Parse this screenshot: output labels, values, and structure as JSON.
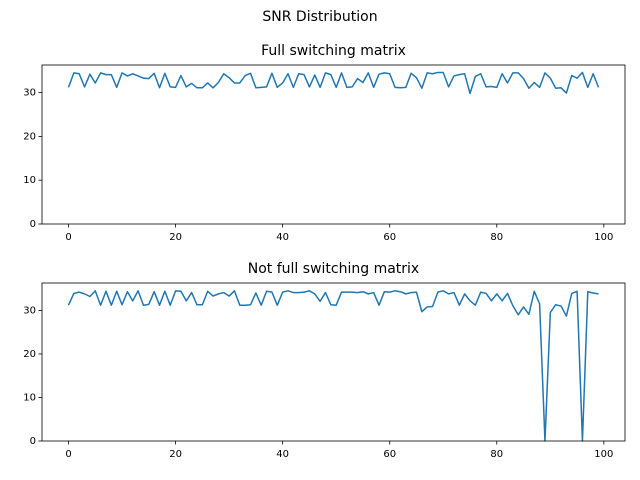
{
  "title": "SNR Distribution",
  "chart_data": [
    {
      "type": "line",
      "title": "Full switching matrix",
      "color": "#1f77b4",
      "x": [
        0,
        1,
        2,
        3,
        4,
        5,
        6,
        7,
        8,
        9,
        10,
        11,
        12,
        13,
        14,
        15,
        16,
        17,
        18,
        19,
        20,
        21,
        22,
        23,
        24,
        25,
        26,
        27,
        28,
        29,
        30,
        31,
        32,
        33,
        34,
        35,
        36,
        37,
        38,
        39,
        40,
        41,
        42,
        43,
        44,
        45,
        46,
        47,
        48,
        49,
        50,
        51,
        52,
        53,
        54,
        55,
        56,
        57,
        58,
        59,
        60,
        61,
        62,
        63,
        64,
        65,
        66,
        67,
        68,
        69,
        70,
        71,
        72,
        73,
        74,
        75,
        76,
        77,
        78,
        79,
        80,
        81,
        82,
        83,
        84,
        85,
        86,
        87,
        88,
        89,
        90,
        91,
        92,
        93,
        94,
        95,
        96,
        97,
        98,
        99
      ],
      "values": [
        31.2,
        34.5,
        34.3,
        31.3,
        34.2,
        32.2,
        34.5,
        34.1,
        34.1,
        31.2,
        34.5,
        33.8,
        34.3,
        33.8,
        33.3,
        33.2,
        34.4,
        31.1,
        34.4,
        31.3,
        31.2,
        33.9,
        31.3,
        32.1,
        31.1,
        31.1,
        32.2,
        31.1,
        32.3,
        34.3,
        33.4,
        32.2,
        32.2,
        33.9,
        34.4,
        31.1,
        31.2,
        31.3,
        34.4,
        31.2,
        32.2,
        34.3,
        31.2,
        34.3,
        34.1,
        31.3,
        34.0,
        31.2,
        34.5,
        34.1,
        31.2,
        34.5,
        31.2,
        31.3,
        33.2,
        32.3,
        34.5,
        31.2,
        34.2,
        34.5,
        34.3,
        31.2,
        31.1,
        31.2,
        34.4,
        33.4,
        31.0,
        34.5,
        34.3,
        34.6,
        34.6,
        31.3,
        33.8,
        34.1,
        34.3,
        29.8,
        33.7,
        34.3,
        31.3,
        31.4,
        31.2,
        34.3,
        32.2,
        34.5,
        34.5,
        33.2,
        31.0,
        32.3,
        31.2,
        34.5,
        33.3,
        31.0,
        31.1,
        29.9,
        33.9,
        33.3,
        34.6,
        31.2,
        34.3,
        31.2
      ],
      "xlim": [
        -4.95,
        103.95
      ],
      "ylim": [
        0,
        36.3
      ],
      "xticks": [
        0,
        20,
        40,
        60,
        80,
        100
      ],
      "yticks": [
        0,
        10,
        20,
        30
      ]
    },
    {
      "type": "line",
      "title": "Not full switching matrix",
      "color": "#1f77b4",
      "x": [
        0,
        1,
        2,
        3,
        4,
        5,
        6,
        7,
        8,
        9,
        10,
        11,
        12,
        13,
        14,
        15,
        16,
        17,
        18,
        19,
        20,
        21,
        22,
        23,
        24,
        25,
        26,
        27,
        28,
        29,
        30,
        31,
        32,
        33,
        34,
        35,
        36,
        37,
        38,
        39,
        40,
        41,
        42,
        43,
        44,
        45,
        46,
        47,
        48,
        49,
        50,
        51,
        52,
        53,
        54,
        55,
        56,
        57,
        58,
        59,
        60,
        61,
        62,
        63,
        64,
        65,
        66,
        67,
        68,
        69,
        70,
        71,
        72,
        73,
        74,
        75,
        76,
        77,
        78,
        79,
        80,
        81,
        82,
        83,
        84,
        85,
        86,
        87,
        88,
        89,
        90,
        91,
        92,
        93,
        94,
        95,
        96,
        97,
        98,
        99
      ],
      "values": [
        31.2,
        33.9,
        34.2,
        33.8,
        33.2,
        34.5,
        31.2,
        34.4,
        31.2,
        34.4,
        31.3,
        34.3,
        32.2,
        34.5,
        31.2,
        31.4,
        34.3,
        31.2,
        34.4,
        31.2,
        34.5,
        34.4,
        32.2,
        34.1,
        31.3,
        31.3,
        34.4,
        33.3,
        33.8,
        34.1,
        33.3,
        34.5,
        31.2,
        31.2,
        31.3,
        34.0,
        31.2,
        34.4,
        34.2,
        31.2,
        34.2,
        34.5,
        34.1,
        34.1,
        34.2,
        34.5,
        33.8,
        32.1,
        34.1,
        31.3,
        31.2,
        34.2,
        34.2,
        34.2,
        34.1,
        34.3,
        33.8,
        34.1,
        31.2,
        34.3,
        34.2,
        34.5,
        34.3,
        33.8,
        34.1,
        34.2,
        29.7,
        30.8,
        30.9,
        34.2,
        34.5,
        33.8,
        34.1,
        31.2,
        33.8,
        32.2,
        31.2,
        34.2,
        33.9,
        32.2,
        33.8,
        32.2,
        33.9,
        31.1,
        29.0,
        30.8,
        29.1,
        34.4,
        31.5,
        0.0,
        29.5,
        31.3,
        31.0,
        28.7,
        33.9,
        34.4,
        0.0,
        34.3,
        34.0,
        33.8
      ],
      "xlim": [
        -4.95,
        103.95
      ],
      "ylim": [
        0,
        36.3
      ],
      "xticks": [
        0,
        20,
        40,
        60,
        80,
        100
      ],
      "yticks": [
        0,
        10,
        20,
        30
      ]
    }
  ]
}
